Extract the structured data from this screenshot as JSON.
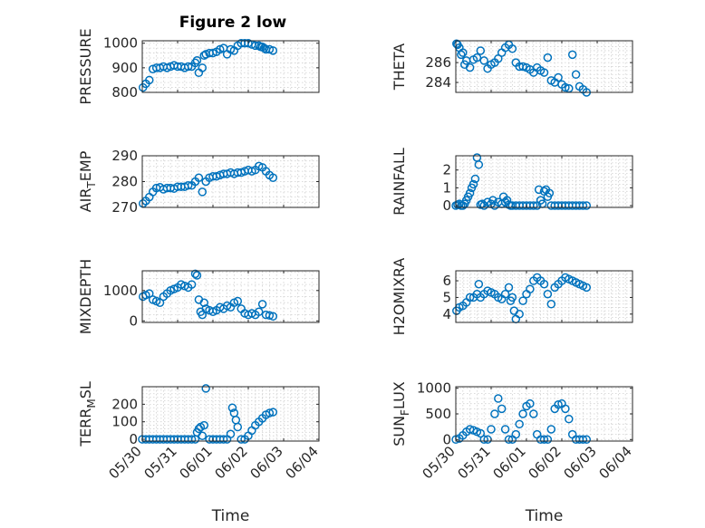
{
  "figure": {
    "title": "Figure 2 low"
  },
  "colors": {
    "series": "#0072bd",
    "axis": "#262626",
    "grid": "#d0d0d0"
  },
  "chart_data": [
    {
      "type": "scatter",
      "ylabel": "PRESSURE",
      "xlabel": "",
      "xlim": [
        0,
        5
      ],
      "ylim": [
        800,
        1010
      ],
      "yticks": [
        800,
        900,
        1000
      ],
      "grid": true,
      "x": [
        0.02,
        0.1,
        0.2,
        0.3,
        0.4,
        0.5,
        0.6,
        0.7,
        0.8,
        0.9,
        1.0,
        1.1,
        1.2,
        1.3,
        1.4,
        1.5,
        1.55,
        1.6,
        1.7,
        1.75,
        1.8,
        1.9,
        2.0,
        2.1,
        2.2,
        2.3,
        2.4,
        2.5,
        2.6,
        2.7,
        2.8,
        2.9,
        3.0,
        3.1,
        3.2,
        3.3,
        3.35,
        3.4,
        3.45,
        3.5,
        3.6,
        3.7
      ],
      "y": [
        820,
        835,
        850,
        895,
        900,
        900,
        905,
        900,
        905,
        910,
        905,
        905,
        900,
        905,
        905,
        920,
        930,
        880,
        900,
        950,
        955,
        960,
        960,
        965,
        975,
        980,
        955,
        975,
        970,
        990,
        1000,
        1000,
        1000,
        995,
        990,
        990,
        985,
        985,
        980,
        975,
        975,
        970
      ]
    },
    {
      "type": "scatter",
      "ylabel": "THETA",
      "xlabel": "",
      "xlim": [
        0,
        5
      ],
      "ylim": [
        283,
        288.2
      ],
      "yticks": [
        284,
        286
      ],
      "grid": true,
      "x": [
        0.02,
        0.05,
        0.1,
        0.15,
        0.2,
        0.25,
        0.3,
        0.4,
        0.5,
        0.6,
        0.7,
        0.8,
        0.9,
        1.0,
        1.1,
        1.2,
        1.3,
        1.4,
        1.5,
        1.6,
        1.7,
        1.8,
        1.9,
        2.0,
        2.1,
        2.2,
        2.3,
        2.4,
        2.5,
        2.6,
        2.7,
        2.8,
        2.9,
        3.0,
        3.1,
        3.2,
        3.3,
        3.4,
        3.5,
        3.6,
        3.7
      ],
      "y": [
        287.9,
        287.8,
        287.5,
        286.8,
        287.0,
        285.8,
        286.2,
        285.5,
        286.3,
        286.5,
        287.2,
        286.2,
        285.4,
        285.8,
        286.0,
        286.4,
        287.0,
        287.5,
        287.8,
        287.4,
        286.0,
        285.6,
        285.6,
        285.5,
        285.3,
        285.0,
        285.5,
        285.2,
        285.0,
        286.5,
        284.2,
        284.0,
        284.5,
        283.8,
        283.5,
        283.4,
        286.8,
        284.8,
        283.6,
        283.3,
        283.0
      ]
    },
    {
      "type": "scatter",
      "ylabel": "AIR_TEMP",
      "xlabel": "",
      "xlim": [
        0,
        5
      ],
      "ylim": [
        270,
        290
      ],
      "yticks": [
        270,
        280,
        290
      ],
      "grid": true,
      "x": [
        0.02,
        0.1,
        0.2,
        0.3,
        0.4,
        0.5,
        0.6,
        0.7,
        0.8,
        0.9,
        1.0,
        1.1,
        1.2,
        1.3,
        1.4,
        1.5,
        1.6,
        1.7,
        1.8,
        1.9,
        2.0,
        2.1,
        2.2,
        2.3,
        2.4,
        2.5,
        2.6,
        2.7,
        2.8,
        2.9,
        3.0,
        3.1,
        3.2,
        3.3,
        3.4,
        3.5,
        3.6,
        3.7
      ],
      "y": [
        271.5,
        272.5,
        274.0,
        276.0,
        277.5,
        277.8,
        277.0,
        277.5,
        277.5,
        277.3,
        278.0,
        278.0,
        278.0,
        278.5,
        278.5,
        280.0,
        281.5,
        276.0,
        280.0,
        281.5,
        282.0,
        282.0,
        282.5,
        283.0,
        283.0,
        283.5,
        283.0,
        283.5,
        283.5,
        284.0,
        284.5,
        284.0,
        284.5,
        286.0,
        285.5,
        284.0,
        282.5,
        281.5
      ]
    },
    {
      "type": "scatter",
      "ylabel": "RAINFALL",
      "xlabel": "",
      "xlim": [
        0,
        5
      ],
      "ylim": [
        -0.1,
        2.8
      ],
      "yticks": [
        0,
        1,
        2
      ],
      "grid": true,
      "x": [
        0.0,
        0.05,
        0.1,
        0.15,
        0.2,
        0.25,
        0.3,
        0.35,
        0.4,
        0.45,
        0.5,
        0.55,
        0.6,
        0.65,
        0.7,
        0.75,
        0.8,
        0.9,
        1.0,
        1.05,
        1.1,
        1.2,
        1.3,
        1.35,
        1.4,
        1.45,
        1.5,
        1.55,
        1.6,
        1.7,
        1.8,
        1.9,
        2.0,
        2.1,
        2.2,
        2.3,
        2.35,
        2.4,
        2.45,
        2.5,
        2.55,
        2.6,
        2.65,
        2.7,
        2.8,
        2.9,
        3.0,
        3.1,
        3.2,
        3.3,
        3.4,
        3.5,
        3.6,
        3.7
      ],
      "y": [
        0.0,
        0.05,
        0.1,
        0.0,
        0.0,
        0.1,
        0.3,
        0.5,
        0.7,
        1.0,
        1.2,
        1.5,
        2.7,
        2.3,
        0.05,
        0.1,
        0.0,
        0.2,
        0.1,
        0.3,
        0.0,
        0.2,
        0.1,
        0.5,
        0.2,
        0.3,
        0.05,
        0.0,
        0.0,
        0.0,
        0.0,
        0.0,
        0.0,
        0.0,
        0.0,
        0.0,
        0.9,
        0.3,
        0.1,
        0.8,
        0.9,
        0.5,
        0.7,
        0.0,
        0.0,
        0.0,
        0.0,
        0.0,
        0.0,
        0.0,
        0.0,
        0.0,
        0.0,
        0.0
      ]
    },
    {
      "type": "scatter",
      "ylabel": "MIXDEPTH",
      "xlabel": "",
      "xlim": [
        0,
        5
      ],
      "ylim": [
        -50,
        1650
      ],
      "yticks": [
        0,
        1000
      ],
      "grid": true,
      "x": [
        0.02,
        0.1,
        0.2,
        0.3,
        0.4,
        0.5,
        0.6,
        0.7,
        0.8,
        0.9,
        1.0,
        1.1,
        1.2,
        1.3,
        1.4,
        1.5,
        1.55,
        1.6,
        1.65,
        1.7,
        1.75,
        1.8,
        1.9,
        2.0,
        2.1,
        2.2,
        2.3,
        2.4,
        2.5,
        2.6,
        2.7,
        2.8,
        2.9,
        3.0,
        3.1,
        3.2,
        3.3,
        3.4,
        3.5,
        3.6,
        3.7
      ],
      "y": [
        800,
        850,
        900,
        700,
        650,
        600,
        800,
        900,
        1000,
        1050,
        1100,
        1200,
        1150,
        1100,
        1200,
        1550,
        1500,
        700,
        300,
        200,
        600,
        400,
        350,
        300,
        350,
        450,
        400,
        500,
        450,
        600,
        650,
        400,
        250,
        200,
        250,
        200,
        300,
        550,
        200,
        180,
        150
      ]
    },
    {
      "type": "scatter",
      "ylabel": "H2OMIXRA",
      "xlabel": "",
      "xlim": [
        0,
        5
      ],
      "ylim": [
        3.5,
        6.6
      ],
      "yticks": [
        4,
        5,
        6
      ],
      "grid": true,
      "x": [
        0.02,
        0.1,
        0.2,
        0.3,
        0.4,
        0.5,
        0.6,
        0.65,
        0.7,
        0.8,
        0.9,
        1.0,
        1.1,
        1.2,
        1.3,
        1.4,
        1.5,
        1.55,
        1.6,
        1.65,
        1.7,
        1.8,
        1.9,
        2.0,
        2.1,
        2.2,
        2.3,
        2.4,
        2.5,
        2.6,
        2.7,
        2.8,
        2.9,
        3.0,
        3.1,
        3.2,
        3.3,
        3.4,
        3.5,
        3.6,
        3.7
      ],
      "y": [
        4.2,
        4.4,
        4.5,
        4.7,
        5.0,
        5.0,
        5.2,
        5.8,
        5.0,
        5.2,
        5.4,
        5.3,
        5.2,
        5.0,
        4.9,
        5.2,
        5.6,
        4.8,
        5.0,
        4.2,
        3.7,
        4.0,
        4.8,
        5.2,
        5.5,
        6.0,
        6.2,
        6.0,
        5.8,
        5.2,
        4.6,
        5.6,
        5.8,
        6.0,
        6.2,
        6.1,
        6.0,
        5.9,
        5.8,
        5.7,
        5.6
      ]
    },
    {
      "type": "scatter",
      "ylabel": "TERR_MSL",
      "xlabel": "Time",
      "xlim": [
        0,
        5
      ],
      "ylim": [
        -10,
        300
      ],
      "yticks": [
        0,
        100,
        200
      ],
      "grid": true,
      "x_tick_labels": [
        "05/30",
        "05/31",
        "06/01",
        "06/02",
        "06/03",
        "06/04"
      ],
      "x": [
        0.0,
        0.1,
        0.2,
        0.3,
        0.4,
        0.5,
        0.6,
        0.7,
        0.8,
        0.9,
        1.0,
        1.1,
        1.2,
        1.3,
        1.4,
        1.5,
        1.55,
        1.6,
        1.65,
        1.7,
        1.75,
        1.8,
        1.9,
        2.0,
        2.1,
        2.2,
        2.3,
        2.4,
        2.5,
        2.55,
        2.6,
        2.65,
        2.7,
        2.8,
        2.9,
        3.0,
        3.1,
        3.2,
        3.3,
        3.4,
        3.5,
        3.6,
        3.7
      ],
      "y": [
        0,
        0,
        0,
        0,
        0,
        0,
        0,
        0,
        0,
        0,
        0,
        0,
        0,
        0,
        0,
        0,
        40,
        60,
        70,
        20,
        80,
        290,
        0,
        0,
        0,
        0,
        0,
        0,
        30,
        180,
        150,
        110,
        70,
        0,
        0,
        20,
        50,
        80,
        100,
        120,
        140,
        150,
        155
      ]
    },
    {
      "type": "scatter",
      "ylabel": "SUN_FLUX",
      "xlabel": "Time",
      "xlim": [
        0,
        5
      ],
      "ylim": [
        -30,
        1030
      ],
      "yticks": [
        0,
        500,
        1000
      ],
      "grid": true,
      "x_tick_labels": [
        "05/30",
        "05/31",
        "06/01",
        "06/02",
        "06/03",
        "06/04"
      ],
      "x": [
        0.0,
        0.1,
        0.2,
        0.3,
        0.4,
        0.5,
        0.6,
        0.7,
        0.8,
        0.9,
        1.0,
        1.1,
        1.2,
        1.3,
        1.4,
        1.5,
        1.6,
        1.7,
        1.8,
        1.9,
        2.0,
        2.1,
        2.2,
        2.3,
        2.4,
        2.5,
        2.6,
        2.7,
        2.8,
        2.9,
        3.0,
        3.1,
        3.2,
        3.3,
        3.4,
        3.5,
        3.6,
        3.7
      ],
      "y": [
        0,
        20,
        80,
        150,
        200,
        180,
        150,
        120,
        0,
        0,
        200,
        500,
        800,
        600,
        200,
        0,
        0,
        100,
        300,
        500,
        650,
        700,
        500,
        100,
        0,
        0,
        0,
        200,
        600,
        680,
        700,
        600,
        400,
        100,
        0,
        0,
        0,
        0
      ]
    }
  ]
}
